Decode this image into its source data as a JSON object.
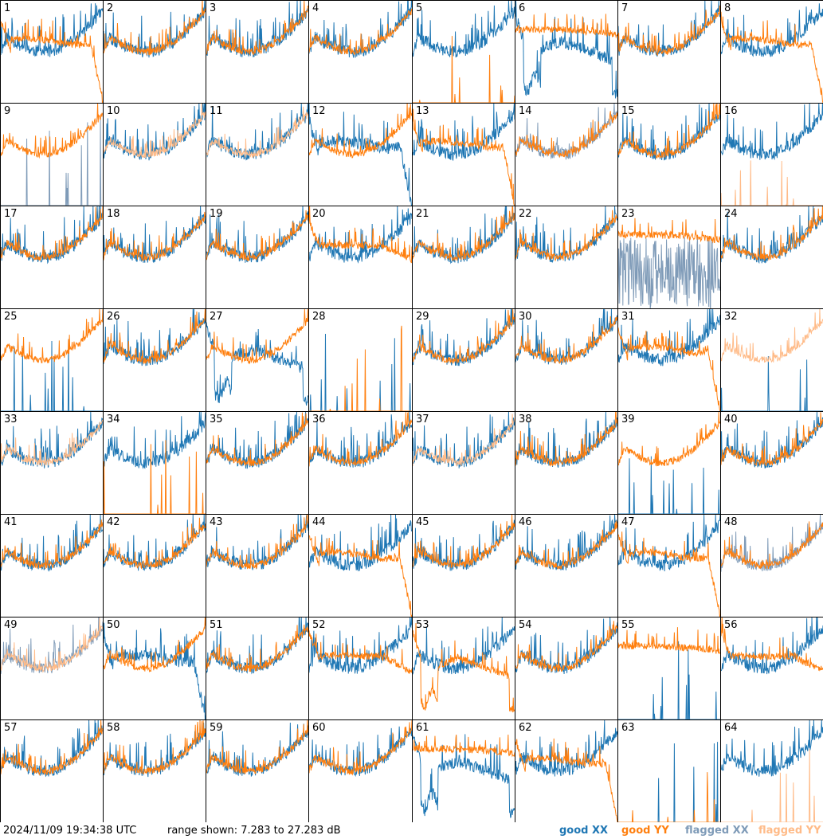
{
  "footer": {
    "timestamp": "2024/11/09 19:34:38 UTC",
    "range_text": "range shown: 7.283 to 27.283 dB"
  },
  "legend": [
    {
      "label": "good XX",
      "color": "#1f77b4"
    },
    {
      "label": "good YY",
      "color": "#ff7f0e"
    },
    {
      "label": "flagged XX",
      "color": "#7f9bb8"
    },
    {
      "label": "flagged YY",
      "color": "#ffbb88"
    }
  ],
  "chart_data": {
    "type": "line",
    "grid": {
      "rows": 8,
      "cols": 8
    },
    "ylim": [
      7.283,
      27.283
    ],
    "yunit": "dB",
    "panels": [
      {
        "id": "1",
        "xx": "good",
        "yy": "good",
        "shape": "normal",
        "yy_shape": "rolloff"
      },
      {
        "id": "2",
        "xx": "good",
        "yy": "good",
        "shape": "normal"
      },
      {
        "id": "3",
        "xx": "good",
        "yy": "good",
        "shape": "normal"
      },
      {
        "id": "4",
        "xx": "good",
        "yy": "good",
        "shape": "normal"
      },
      {
        "id": "5",
        "xx": "good",
        "yy": "good",
        "shape": "normal",
        "yy_shape": "dead"
      },
      {
        "id": "6",
        "xx": "good",
        "yy": "good",
        "shape": "dip",
        "yy_shape": "flat_high"
      },
      {
        "id": "7",
        "xx": "good",
        "yy": "good",
        "shape": "normal"
      },
      {
        "id": "8",
        "xx": "good",
        "yy": "good",
        "shape": "normal",
        "yy_shape": "rolloff"
      },
      {
        "id": "9",
        "xx": "flagged",
        "yy": "good",
        "shape": "dead",
        "yy_shape": "normal"
      },
      {
        "id": "10",
        "xx": "good",
        "yy": "flagged",
        "shape": "normal"
      },
      {
        "id": "11",
        "xx": "good",
        "yy": "flagged",
        "shape": "normal"
      },
      {
        "id": "12",
        "xx": "good",
        "yy": "good",
        "shape": "rolloff",
        "yy_shape": "normal"
      },
      {
        "id": "13",
        "xx": "good",
        "yy": "good",
        "shape": "normal",
        "yy_shape": "rolloff"
      },
      {
        "id": "14",
        "xx": "flagged",
        "yy": "good",
        "shape": "normal"
      },
      {
        "id": "15",
        "xx": "good",
        "yy": "good",
        "shape": "normal"
      },
      {
        "id": "16",
        "xx": "good",
        "yy": "flagged",
        "shape": "normal",
        "yy_shape": "dead"
      },
      {
        "id": "17",
        "xx": "good",
        "yy": "good",
        "shape": "normal"
      },
      {
        "id": "18",
        "xx": "good",
        "yy": "good",
        "shape": "normal"
      },
      {
        "id": "19",
        "xx": "good",
        "yy": "good",
        "shape": "normal"
      },
      {
        "id": "20",
        "xx": "good",
        "yy": "good",
        "shape": "normal",
        "yy_shape": "rolloff_soft"
      },
      {
        "id": "21",
        "xx": "good",
        "yy": "good",
        "shape": "normal"
      },
      {
        "id": "22",
        "xx": "good",
        "yy": "good",
        "shape": "normal"
      },
      {
        "id": "23",
        "xx": "flagged",
        "yy": "good",
        "shape": "noisy",
        "yy_shape": "flat_high"
      },
      {
        "id": "24",
        "xx": "good",
        "yy": "good",
        "shape": "normal"
      },
      {
        "id": "25",
        "xx": "good",
        "yy": "good",
        "shape": "dead",
        "yy_shape": "normal"
      },
      {
        "id": "26",
        "xx": "good",
        "yy": "good",
        "shape": "normal"
      },
      {
        "id": "27",
        "xx": "good",
        "yy": "good",
        "shape": "dip",
        "yy_shape": "normal"
      },
      {
        "id": "28",
        "xx": "good",
        "yy": "good",
        "shape": "dead",
        "yy_shape": "dead"
      },
      {
        "id": "29",
        "xx": "good",
        "yy": "good",
        "shape": "normal"
      },
      {
        "id": "30",
        "xx": "good",
        "yy": "good",
        "shape": "normal"
      },
      {
        "id": "31",
        "xx": "good",
        "yy": "good",
        "shape": "normal",
        "yy_shape": "rolloff"
      },
      {
        "id": "32",
        "xx": "good",
        "yy": "flagged",
        "shape": "dead",
        "yy_shape": "normal"
      },
      {
        "id": "33",
        "xx": "good",
        "yy": "flagged",
        "shape": "normal"
      },
      {
        "id": "34",
        "xx": "good",
        "yy": "good",
        "shape": "normal",
        "yy_shape": "dead"
      },
      {
        "id": "35",
        "xx": "good",
        "yy": "good",
        "shape": "normal"
      },
      {
        "id": "36",
        "xx": "good",
        "yy": "good",
        "shape": "normal"
      },
      {
        "id": "37",
        "xx": "good",
        "yy": "flagged",
        "shape": "normal"
      },
      {
        "id": "38",
        "xx": "good",
        "yy": "good",
        "shape": "normal"
      },
      {
        "id": "39",
        "xx": "good",
        "yy": "good",
        "shape": "dead",
        "yy_shape": "normal"
      },
      {
        "id": "40",
        "xx": "good",
        "yy": "good",
        "shape": "normal"
      },
      {
        "id": "41",
        "xx": "good",
        "yy": "good",
        "shape": "normal"
      },
      {
        "id": "42",
        "xx": "good",
        "yy": "good",
        "shape": "normal"
      },
      {
        "id": "43",
        "xx": "good",
        "yy": "good",
        "shape": "normal"
      },
      {
        "id": "44",
        "xx": "good",
        "yy": "good",
        "shape": "normal",
        "yy_shape": "rolloff"
      },
      {
        "id": "45",
        "xx": "good",
        "yy": "good",
        "shape": "normal"
      },
      {
        "id": "46",
        "xx": "good",
        "yy": "good",
        "shape": "normal"
      },
      {
        "id": "47",
        "xx": "good",
        "yy": "good",
        "shape": "normal",
        "yy_shape": "rolloff"
      },
      {
        "id": "48",
        "xx": "flagged",
        "yy": "good",
        "shape": "normal"
      },
      {
        "id": "49",
        "xx": "flagged",
        "yy": "flagged",
        "shape": "normal"
      },
      {
        "id": "50",
        "xx": "good",
        "yy": "good",
        "shape": "rolloff",
        "yy_shape": "normal"
      },
      {
        "id": "51",
        "xx": "good",
        "yy": "good",
        "shape": "normal"
      },
      {
        "id": "52",
        "xx": "good",
        "yy": "good",
        "shape": "normal",
        "yy_shape": "rolloff_soft"
      },
      {
        "id": "53",
        "xx": "good",
        "yy": "good",
        "shape": "normal",
        "yy_shape": "dip"
      },
      {
        "id": "54",
        "xx": "good",
        "yy": "good",
        "shape": "normal"
      },
      {
        "id": "55",
        "xx": "good",
        "yy": "good",
        "shape": "dead",
        "yy_shape": "flat_high"
      },
      {
        "id": "56",
        "xx": "good",
        "yy": "good",
        "shape": "normal",
        "yy_shape": "rolloff_soft"
      },
      {
        "id": "57",
        "xx": "good",
        "yy": "good",
        "shape": "normal"
      },
      {
        "id": "58",
        "xx": "good",
        "yy": "good",
        "shape": "normal"
      },
      {
        "id": "59",
        "xx": "good",
        "yy": "good",
        "shape": "normal"
      },
      {
        "id": "60",
        "xx": "good",
        "yy": "good",
        "shape": "normal"
      },
      {
        "id": "61",
        "xx": "good",
        "yy": "good",
        "shape": "dip",
        "yy_shape": "flat_high"
      },
      {
        "id": "62",
        "xx": "good",
        "yy": "good",
        "shape": "normal",
        "yy_shape": "rolloff"
      },
      {
        "id": "63",
        "xx": "good",
        "yy": "good",
        "shape": "dead",
        "yy_shape": "dead"
      },
      {
        "id": "64",
        "xx": "good",
        "yy": "flagged",
        "shape": "normal",
        "yy_shape": "dead"
      }
    ]
  }
}
